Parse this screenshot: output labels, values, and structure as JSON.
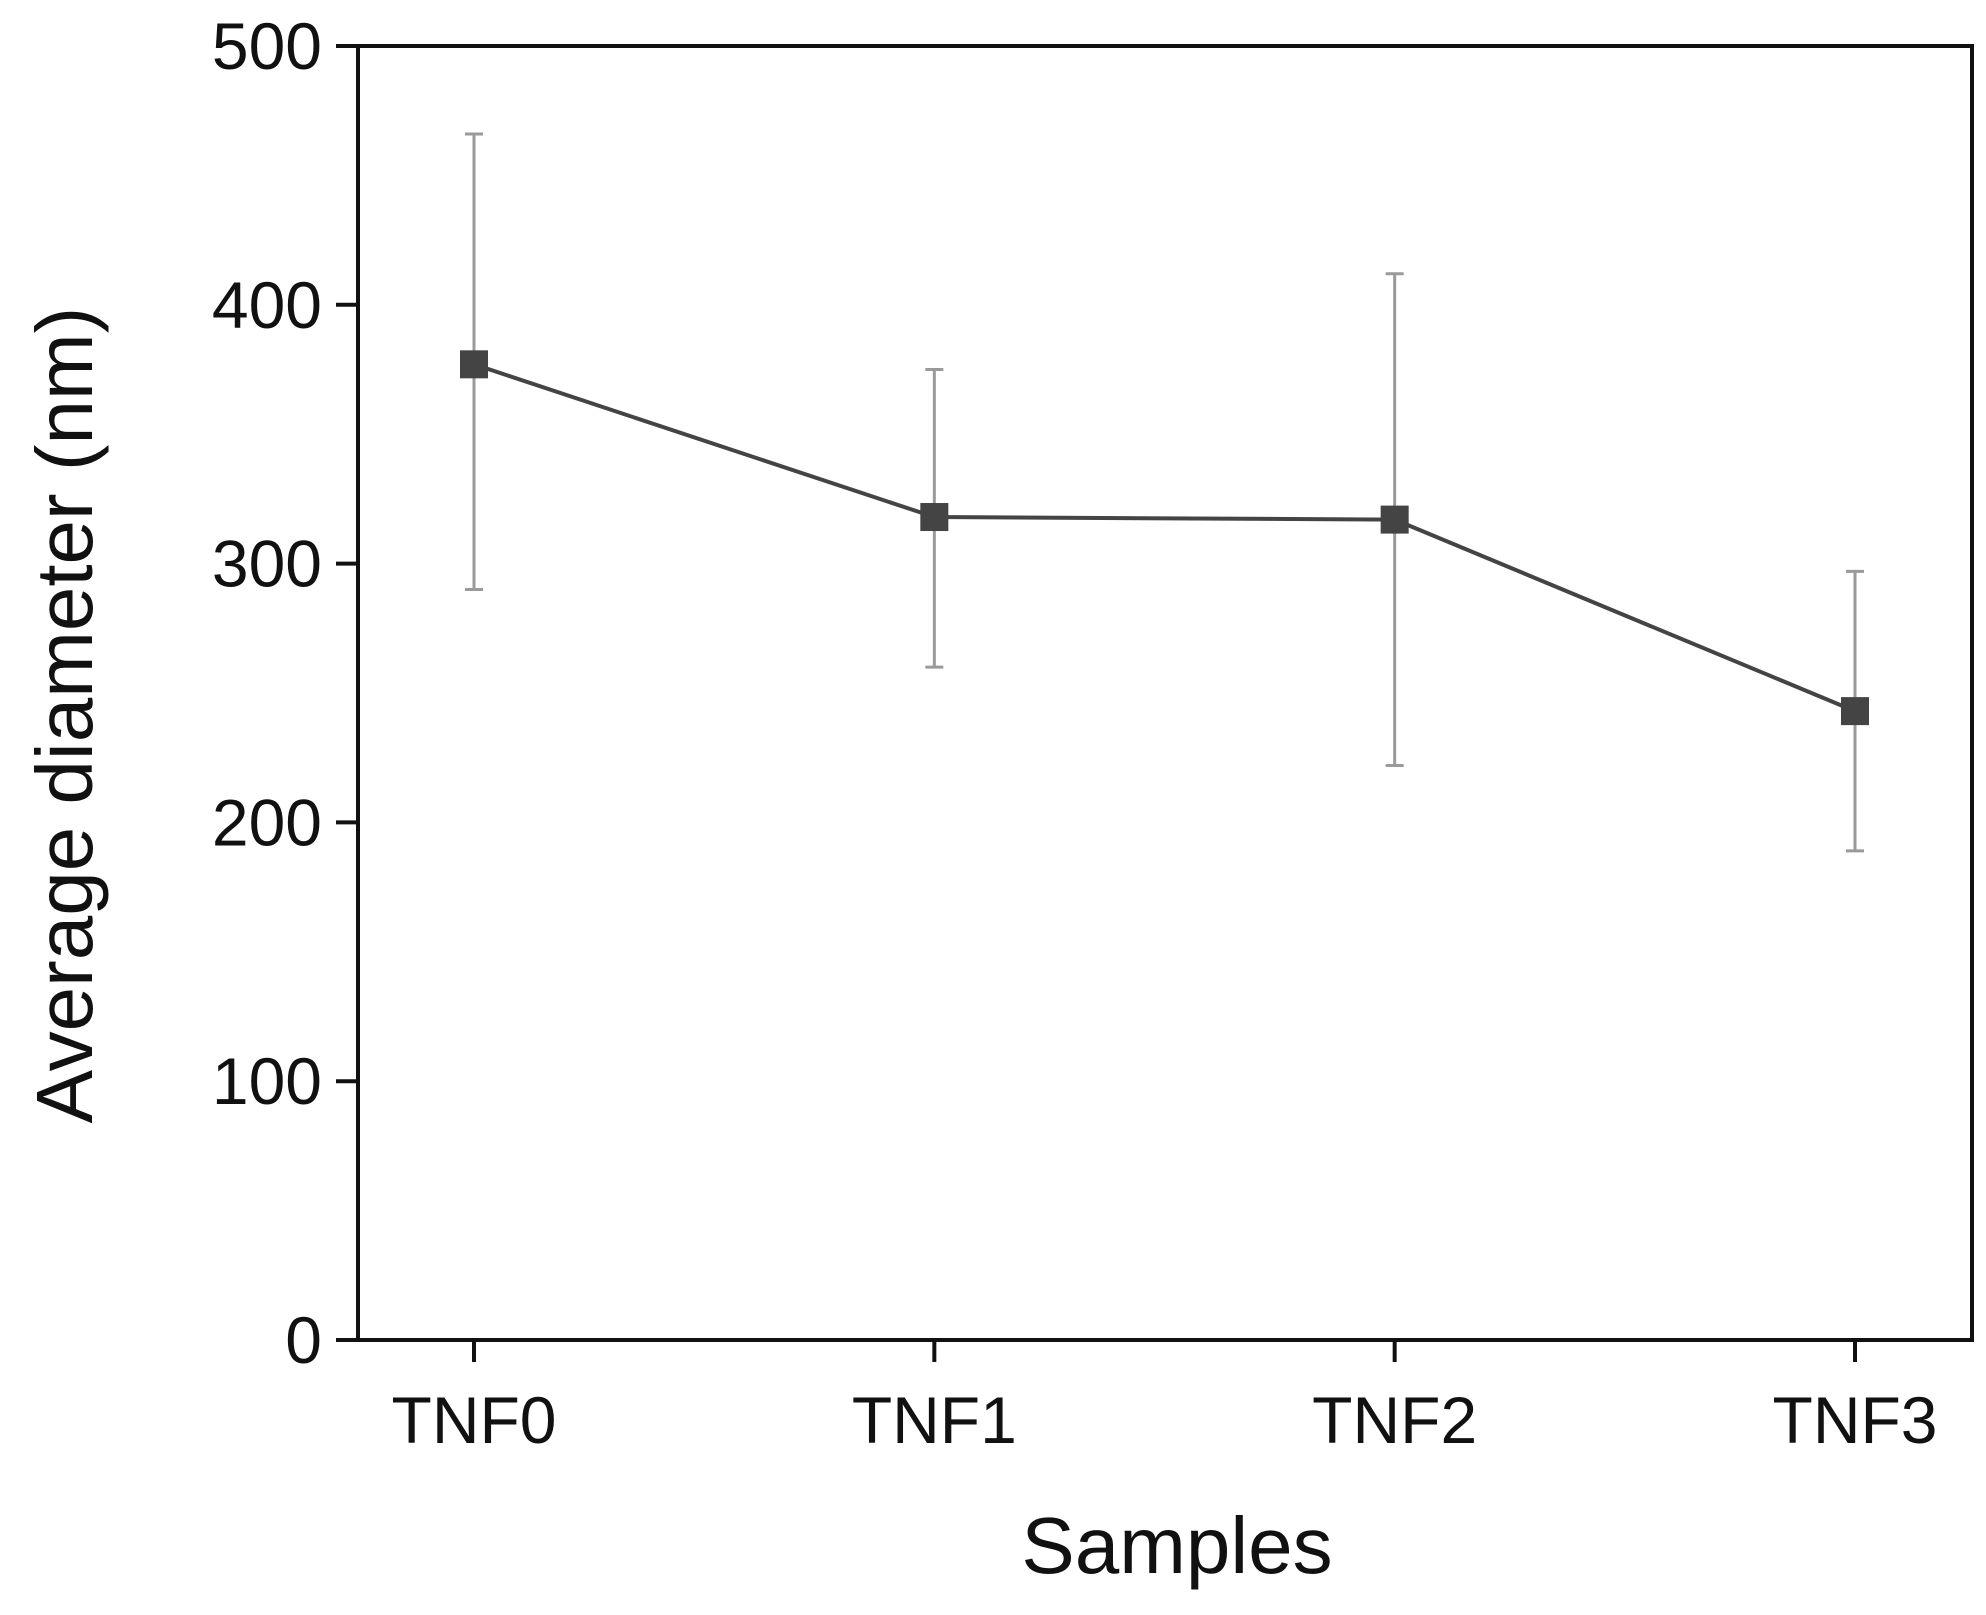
{
  "chart_data": {
    "type": "line",
    "title": "",
    "xlabel": "Samples",
    "ylabel": "Average diameter (nm)",
    "categories": [
      "TNF0",
      "TNF1",
      "TNF2",
      "TNF3"
    ],
    "ylim": [
      0,
      500
    ],
    "yticks": [
      0,
      100,
      200,
      300,
      400,
      500
    ],
    "grid": false,
    "legend": "none",
    "series": [
      {
        "name": "Average diameter",
        "values": [
          377,
          318,
          317,
          243
        ],
        "error_high": [
          466,
          375,
          412,
          297
        ],
        "error_low": [
          290,
          260,
          222,
          189
        ],
        "marker": "square",
        "color": "#444444"
      }
    ],
    "errorbar_color": "#9a9a9a",
    "axis_color": "#111111"
  }
}
